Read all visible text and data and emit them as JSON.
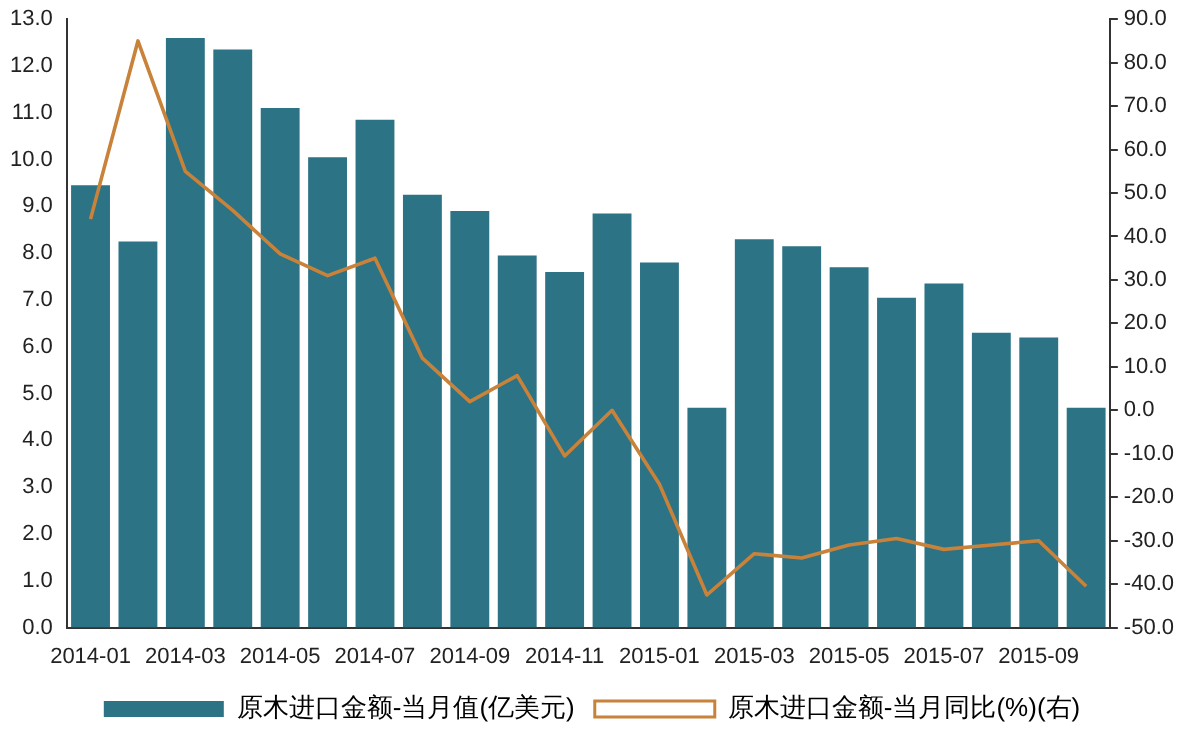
{
  "chart_data": {
    "type": "bar",
    "categories": [
      "2014-01",
      null,
      "2014-03",
      null,
      "2014-05",
      null,
      "2014-07",
      null,
      "2014-09",
      null,
      "2014-11",
      null,
      "2015-01",
      null,
      "2015-03",
      null,
      "2015-05",
      null,
      "2015-07",
      null,
      "2015-09",
      null
    ],
    "series": [
      {
        "name": "原木进口金额-当月值(亿美元)",
        "color": "#2b7385",
        "values": [
          9.45,
          8.25,
          12.6,
          12.35,
          11.1,
          10.05,
          10.85,
          9.25,
          8.9,
          7.95,
          7.6,
          8.85,
          7.8,
          4.7,
          8.3,
          8.15,
          7.7,
          7.05,
          7.35,
          6.3,
          6.2,
          4.7
        ]
      },
      {
        "name": "原木进口金额-当月同比(%)(右)",
        "type": "line",
        "axis": "y2",
        "color": "#c8823a",
        "values": [
          44,
          85,
          55,
          46,
          36,
          31,
          35,
          12,
          2,
          8,
          -10.5,
          0,
          -17,
          -42.5,
          -33,
          -34,
          -31,
          -29.5,
          -32,
          -31,
          -30,
          -40.5
        ]
      }
    ],
    "ylim": [
      0,
      13
    ],
    "yticks": [
      {
        "value": 0,
        "label": "0.0"
      },
      {
        "value": 1,
        "label": "1.0"
      },
      {
        "value": 2,
        "label": "2.0"
      },
      {
        "value": 3,
        "label": "3.0"
      },
      {
        "value": 4,
        "label": "4.0"
      },
      {
        "value": 5,
        "label": "5.0"
      },
      {
        "value": 6,
        "label": "6.0"
      },
      {
        "value": 7,
        "label": "7.0"
      },
      {
        "value": 8,
        "label": "8.0"
      },
      {
        "value": 9,
        "label": "9.0"
      },
      {
        "value": 10,
        "label": "10.0"
      },
      {
        "value": 11,
        "label": "11.0"
      },
      {
        "value": 12,
        "label": "12.0"
      },
      {
        "value": 13,
        "label": "13.0"
      }
    ],
    "y2lim": [
      -50,
      90
    ],
    "y2ticks": [
      {
        "value": -50,
        "label": "-50.0"
      },
      {
        "value": -40,
        "label": "-40.0"
      },
      {
        "value": -30,
        "label": "-30.0"
      },
      {
        "value": -20,
        "label": "-20.0"
      },
      {
        "value": -10,
        "label": "-10.0"
      },
      {
        "value": 0,
        "label": "0.0"
      },
      {
        "value": 10,
        "label": "10.0"
      },
      {
        "value": 20,
        "label": "20.0"
      },
      {
        "value": 30,
        "label": "30.0"
      },
      {
        "value": 40,
        "label": "40.0"
      },
      {
        "value": 50,
        "label": "50.0"
      },
      {
        "value": 60,
        "label": "60.0"
      },
      {
        "value": 70,
        "label": "70.0"
      },
      {
        "value": 80,
        "label": "80.0"
      },
      {
        "value": 90,
        "label": "90.0"
      }
    ],
    "grid": false,
    "legend": "bottom",
    "marker": "none"
  }
}
